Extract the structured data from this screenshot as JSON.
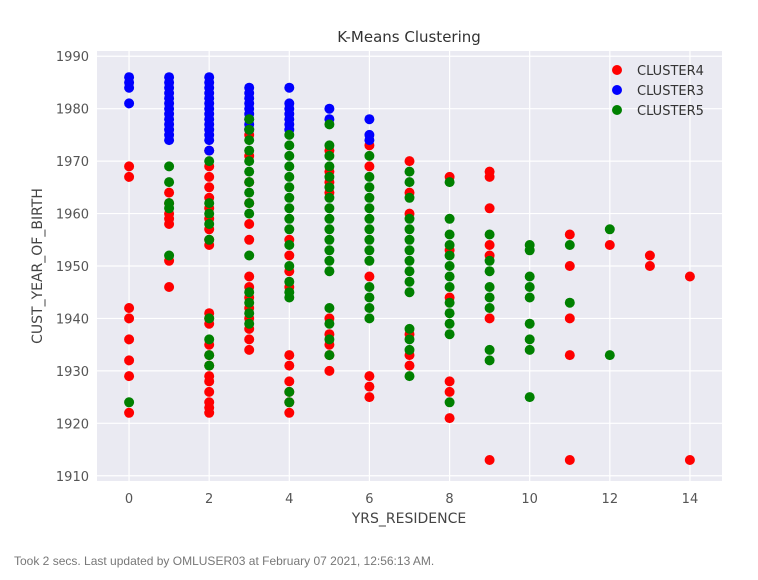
{
  "status_text": "Took 2 secs. Last updated by OMLUSER03 at February 07 2021, 12:56:13 AM.",
  "chart_data": {
    "type": "scatter",
    "title": "K-Means Clustering",
    "xlabel": "YRS_RESIDENCE",
    "ylabel": "CUST_YEAR_OF_BIRTH",
    "xlim": [
      -0.8,
      14.8
    ],
    "ylim": [
      1909,
      1991
    ],
    "xticks": [
      0,
      2,
      4,
      6,
      8,
      10,
      12,
      14
    ],
    "yticks": [
      1910,
      1920,
      1930,
      1940,
      1950,
      1960,
      1970,
      1980,
      1990
    ],
    "grid": true,
    "legend_position": "top-right",
    "background": "#eaeaf2",
    "series": [
      {
        "name": "CLUSTER4",
        "color": "#ff0000",
        "points": [
          [
            0,
            1969
          ],
          [
            0,
            1967
          ],
          [
            0,
            1942
          ],
          [
            0,
            1940
          ],
          [
            0,
            1936
          ],
          [
            0,
            1932
          ],
          [
            0,
            1929
          ],
          [
            0,
            1922
          ],
          [
            1,
            1964
          ],
          [
            1,
            1962
          ],
          [
            1,
            1960
          ],
          [
            1,
            1959
          ],
          [
            1,
            1958
          ],
          [
            1,
            1951
          ],
          [
            1,
            1946
          ],
          [
            2,
            1972
          ],
          [
            2,
            1969
          ],
          [
            2,
            1967
          ],
          [
            2,
            1965
          ],
          [
            2,
            1963
          ],
          [
            2,
            1961
          ],
          [
            2,
            1959
          ],
          [
            2,
            1957
          ],
          [
            2,
            1955
          ],
          [
            2,
            1954
          ],
          [
            2,
            1941
          ],
          [
            2,
            1940
          ],
          [
            2,
            1939
          ],
          [
            2,
            1935
          ],
          [
            2,
            1933
          ],
          [
            2,
            1931
          ],
          [
            2,
            1929
          ],
          [
            2,
            1928
          ],
          [
            2,
            1926
          ],
          [
            2,
            1924
          ],
          [
            2,
            1923
          ],
          [
            2,
            1922
          ],
          [
            3,
            1975
          ],
          [
            3,
            1971
          ],
          [
            3,
            1966
          ],
          [
            3,
            1962
          ],
          [
            3,
            1958
          ],
          [
            3,
            1955
          ],
          [
            3,
            1948
          ],
          [
            3,
            1946
          ],
          [
            3,
            1944
          ],
          [
            3,
            1942
          ],
          [
            3,
            1940
          ],
          [
            3,
            1938
          ],
          [
            3,
            1936
          ],
          [
            3,
            1934
          ],
          [
            4,
            1955
          ],
          [
            4,
            1952
          ],
          [
            4,
            1949
          ],
          [
            4,
            1946
          ],
          [
            4,
            1933
          ],
          [
            4,
            1931
          ],
          [
            4,
            1928
          ],
          [
            4,
            1926
          ],
          [
            4,
            1924
          ],
          [
            4,
            1922
          ],
          [
            5,
            1972
          ],
          [
            5,
            1968
          ],
          [
            5,
            1966
          ],
          [
            5,
            1964
          ],
          [
            5,
            1940
          ],
          [
            5,
            1937
          ],
          [
            5,
            1935
          ],
          [
            5,
            1933
          ],
          [
            5,
            1930
          ],
          [
            6,
            1973
          ],
          [
            6,
            1969
          ],
          [
            6,
            1948
          ],
          [
            6,
            1929
          ],
          [
            6,
            1927
          ],
          [
            6,
            1925
          ],
          [
            7,
            1970
          ],
          [
            7,
            1964
          ],
          [
            7,
            1960
          ],
          [
            7,
            1937
          ],
          [
            7,
            1933
          ],
          [
            7,
            1931
          ],
          [
            8,
            1967
          ],
          [
            8,
            1953
          ],
          [
            8,
            1944
          ],
          [
            8,
            1928
          ],
          [
            8,
            1926
          ],
          [
            8,
            1921
          ],
          [
            9,
            1968
          ],
          [
            9,
            1967
          ],
          [
            9,
            1961
          ],
          [
            9,
            1954
          ],
          [
            9,
            1952
          ],
          [
            9,
            1940
          ],
          [
            9,
            1913
          ],
          [
            11,
            1956
          ],
          [
            11,
            1950
          ],
          [
            11,
            1940
          ],
          [
            11,
            1933
          ],
          [
            11,
            1913
          ],
          [
            12,
            1954
          ],
          [
            13,
            1952
          ],
          [
            13,
            1950
          ],
          [
            14,
            1948
          ],
          [
            14,
            1913
          ]
        ]
      },
      {
        "name": "CLUSTER3",
        "color": "#0000ff",
        "points": [
          [
            0,
            1986
          ],
          [
            0,
            1985
          ],
          [
            0,
            1984
          ],
          [
            0,
            1981
          ],
          [
            1,
            1986
          ],
          [
            1,
            1985
          ],
          [
            1,
            1984
          ],
          [
            1,
            1983
          ],
          [
            1,
            1982
          ],
          [
            1,
            1981
          ],
          [
            1,
            1980
          ],
          [
            1,
            1979
          ],
          [
            1,
            1978
          ],
          [
            1,
            1977
          ],
          [
            1,
            1976
          ],
          [
            1,
            1975
          ],
          [
            1,
            1974
          ],
          [
            2,
            1986
          ],
          [
            2,
            1985
          ],
          [
            2,
            1984
          ],
          [
            2,
            1983
          ],
          [
            2,
            1982
          ],
          [
            2,
            1981
          ],
          [
            2,
            1980
          ],
          [
            2,
            1979
          ],
          [
            2,
            1978
          ],
          [
            2,
            1977
          ],
          [
            2,
            1976
          ],
          [
            2,
            1975
          ],
          [
            2,
            1974
          ],
          [
            2,
            1972
          ],
          [
            3,
            1984
          ],
          [
            3,
            1983
          ],
          [
            3,
            1982
          ],
          [
            3,
            1981
          ],
          [
            3,
            1980
          ],
          [
            3,
            1979
          ],
          [
            3,
            1978
          ],
          [
            3,
            1977
          ],
          [
            3,
            1976
          ],
          [
            4,
            1984
          ],
          [
            4,
            1981
          ],
          [
            4,
            1980
          ],
          [
            4,
            1979
          ],
          [
            4,
            1978
          ],
          [
            4,
            1977
          ],
          [
            4,
            1976
          ],
          [
            5,
            1980
          ],
          [
            5,
            1978
          ],
          [
            6,
            1978
          ],
          [
            6,
            1975
          ],
          [
            6,
            1974
          ]
        ]
      },
      {
        "name": "CLUSTER5",
        "color": "#008000",
        "points": [
          [
            0,
            1924
          ],
          [
            1,
            1969
          ],
          [
            1,
            1966
          ],
          [
            1,
            1962
          ],
          [
            1,
            1961
          ],
          [
            1,
            1952
          ],
          [
            2,
            1970
          ],
          [
            2,
            1962
          ],
          [
            2,
            1960
          ],
          [
            2,
            1958
          ],
          [
            2,
            1955
          ],
          [
            2,
            1940
          ],
          [
            2,
            1936
          ],
          [
            2,
            1933
          ],
          [
            2,
            1931
          ],
          [
            3,
            1978
          ],
          [
            3,
            1976
          ],
          [
            3,
            1974
          ],
          [
            3,
            1972
          ],
          [
            3,
            1970
          ],
          [
            3,
            1968
          ],
          [
            3,
            1966
          ],
          [
            3,
            1964
          ],
          [
            3,
            1962
          ],
          [
            3,
            1960
          ],
          [
            3,
            1952
          ],
          [
            3,
            1945
          ],
          [
            3,
            1943
          ],
          [
            3,
            1941
          ],
          [
            3,
            1939
          ],
          [
            4,
            1975
          ],
          [
            4,
            1973
          ],
          [
            4,
            1971
          ],
          [
            4,
            1969
          ],
          [
            4,
            1967
          ],
          [
            4,
            1965
          ],
          [
            4,
            1963
          ],
          [
            4,
            1961
          ],
          [
            4,
            1959
          ],
          [
            4,
            1957
          ],
          [
            4,
            1954
          ],
          [
            4,
            1950
          ],
          [
            4,
            1947
          ],
          [
            4,
            1945
          ],
          [
            4,
            1944
          ],
          [
            4,
            1926
          ],
          [
            4,
            1924
          ],
          [
            5,
            1977
          ],
          [
            5,
            1973
          ],
          [
            5,
            1971
          ],
          [
            5,
            1969
          ],
          [
            5,
            1967
          ],
          [
            5,
            1965
          ],
          [
            5,
            1963
          ],
          [
            5,
            1961
          ],
          [
            5,
            1959
          ],
          [
            5,
            1957
          ],
          [
            5,
            1955
          ],
          [
            5,
            1953
          ],
          [
            5,
            1951
          ],
          [
            5,
            1949
          ],
          [
            5,
            1942
          ],
          [
            5,
            1939
          ],
          [
            5,
            1936
          ],
          [
            5,
            1933
          ],
          [
            6,
            1971
          ],
          [
            6,
            1967
          ],
          [
            6,
            1965
          ],
          [
            6,
            1963
          ],
          [
            6,
            1961
          ],
          [
            6,
            1959
          ],
          [
            6,
            1957
          ],
          [
            6,
            1955
          ],
          [
            6,
            1953
          ],
          [
            6,
            1951
          ],
          [
            6,
            1946
          ],
          [
            6,
            1944
          ],
          [
            6,
            1942
          ],
          [
            6,
            1940
          ],
          [
            7,
            1968
          ],
          [
            7,
            1966
          ],
          [
            7,
            1963
          ],
          [
            7,
            1959
          ],
          [
            7,
            1957
          ],
          [
            7,
            1955
          ],
          [
            7,
            1953
          ],
          [
            7,
            1951
          ],
          [
            7,
            1949
          ],
          [
            7,
            1947
          ],
          [
            7,
            1945
          ],
          [
            7,
            1938
          ],
          [
            7,
            1936
          ],
          [
            7,
            1934
          ],
          [
            7,
            1929
          ],
          [
            8,
            1966
          ],
          [
            8,
            1959
          ],
          [
            8,
            1956
          ],
          [
            8,
            1954
          ],
          [
            8,
            1952
          ],
          [
            8,
            1950
          ],
          [
            8,
            1948
          ],
          [
            8,
            1946
          ],
          [
            8,
            1943
          ],
          [
            8,
            1941
          ],
          [
            8,
            1939
          ],
          [
            8,
            1937
          ],
          [
            8,
            1924
          ],
          [
            9,
            1956
          ],
          [
            9,
            1951
          ],
          [
            9,
            1949
          ],
          [
            9,
            1946
          ],
          [
            9,
            1944
          ],
          [
            9,
            1942
          ],
          [
            9,
            1934
          ],
          [
            9,
            1932
          ],
          [
            10,
            1954
          ],
          [
            10,
            1953
          ],
          [
            10,
            1948
          ],
          [
            10,
            1946
          ],
          [
            10,
            1944
          ],
          [
            10,
            1939
          ],
          [
            10,
            1936
          ],
          [
            10,
            1934
          ],
          [
            10,
            1925
          ],
          [
            11,
            1954
          ],
          [
            11,
            1943
          ],
          [
            12,
            1957
          ],
          [
            12,
            1933
          ]
        ]
      }
    ]
  }
}
